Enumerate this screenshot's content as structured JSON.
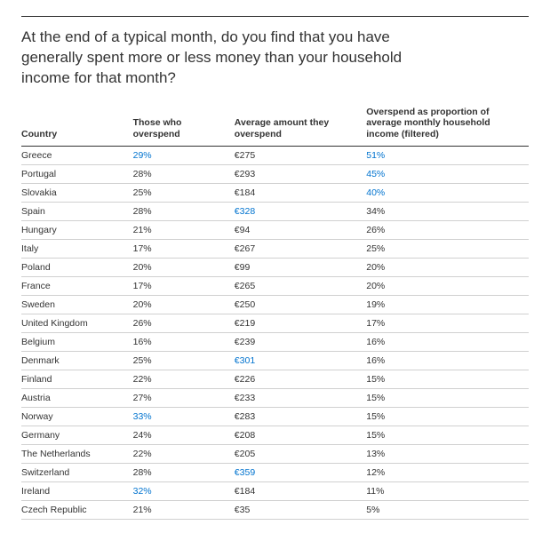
{
  "title": "At the end of a typical month, do you find that you have generally spent more or less money than your household income for that month?",
  "highlight_color": "#0073cf",
  "text_color": "#333333",
  "border_color_header": "#333333",
  "border_color_row": "#d0d0d0",
  "columns": [
    "Country",
    "Those who overspend",
    "Average amount they overspend",
    "Overspend as proportion of average monthly household income (filtered)"
  ],
  "rows": [
    {
      "country": "Greece",
      "overspend": "29%",
      "overspend_hl": true,
      "amount": "€275",
      "amount_hl": false,
      "prop": "51%",
      "prop_hl": true
    },
    {
      "country": "Portugal",
      "overspend": "28%",
      "overspend_hl": false,
      "amount": "€293",
      "amount_hl": false,
      "prop": "45%",
      "prop_hl": true
    },
    {
      "country": "Slovakia",
      "overspend": "25%",
      "overspend_hl": false,
      "amount": "€184",
      "amount_hl": false,
      "prop": "40%",
      "prop_hl": true
    },
    {
      "country": "Spain",
      "overspend": "28%",
      "overspend_hl": false,
      "amount": "€328",
      "amount_hl": true,
      "prop": "34%",
      "prop_hl": false
    },
    {
      "country": "Hungary",
      "overspend": "21%",
      "overspend_hl": false,
      "amount": "€94",
      "amount_hl": false,
      "prop": "26%",
      "prop_hl": false
    },
    {
      "country": "Italy",
      "overspend": "17%",
      "overspend_hl": false,
      "amount": "€267",
      "amount_hl": false,
      "prop": "25%",
      "prop_hl": false
    },
    {
      "country": "Poland",
      "overspend": "20%",
      "overspend_hl": false,
      "amount": "€99",
      "amount_hl": false,
      "prop": "20%",
      "prop_hl": false
    },
    {
      "country": "France",
      "overspend": "17%",
      "overspend_hl": false,
      "amount": "€265",
      "amount_hl": false,
      "prop": "20%",
      "prop_hl": false
    },
    {
      "country": "Sweden",
      "overspend": "20%",
      "overspend_hl": false,
      "amount": "€250",
      "amount_hl": false,
      "prop": "19%",
      "prop_hl": false
    },
    {
      "country": "United Kingdom",
      "overspend": "26%",
      "overspend_hl": false,
      "amount": "€219",
      "amount_hl": false,
      "prop": "17%",
      "prop_hl": false
    },
    {
      "country": "Belgium",
      "overspend": "16%",
      "overspend_hl": false,
      "amount": "€239",
      "amount_hl": false,
      "prop": "16%",
      "prop_hl": false
    },
    {
      "country": "Denmark",
      "overspend": "25%",
      "overspend_hl": false,
      "amount": "€301",
      "amount_hl": true,
      "prop": "16%",
      "prop_hl": false
    },
    {
      "country": "Finland",
      "overspend": "22%",
      "overspend_hl": false,
      "amount": "€226",
      "amount_hl": false,
      "prop": "15%",
      "prop_hl": false
    },
    {
      "country": "Austria",
      "overspend": "27%",
      "overspend_hl": false,
      "amount": "€233",
      "amount_hl": false,
      "prop": "15%",
      "prop_hl": false
    },
    {
      "country": "Norway",
      "overspend": "33%",
      "overspend_hl": true,
      "amount": "€283",
      "amount_hl": false,
      "prop": "15%",
      "prop_hl": false
    },
    {
      "country": "Germany",
      "overspend": "24%",
      "overspend_hl": false,
      "amount": "€208",
      "amount_hl": false,
      "prop": "15%",
      "prop_hl": false
    },
    {
      "country": "The Netherlands",
      "overspend": "22%",
      "overspend_hl": false,
      "amount": "€205",
      "amount_hl": false,
      "prop": "13%",
      "prop_hl": false
    },
    {
      "country": "Switzerland",
      "overspend": "28%",
      "overspend_hl": false,
      "amount": "€359",
      "amount_hl": true,
      "prop": "12%",
      "prop_hl": false
    },
    {
      "country": "Ireland",
      "overspend": "32%",
      "overspend_hl": true,
      "amount": "€184",
      "amount_hl": false,
      "prop": "11%",
      "prop_hl": false
    },
    {
      "country": "Czech Republic",
      "overspend": "21%",
      "overspend_hl": false,
      "amount": "€35",
      "amount_hl": false,
      "prop": "5%",
      "prop_hl": false
    }
  ]
}
